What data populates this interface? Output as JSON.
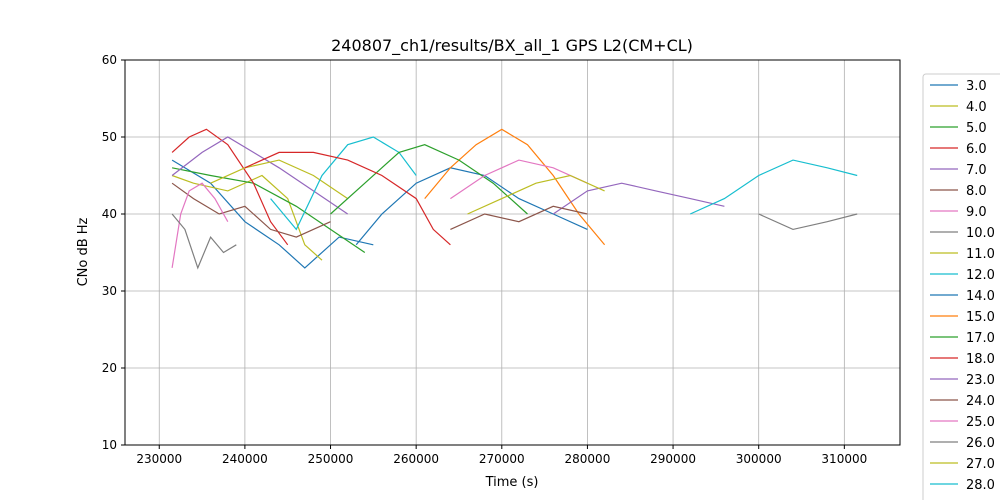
{
  "chart_data": {
    "type": "line",
    "title": "240807_ch1/results/BX_all_1 GPS L2(CM+CL)",
    "xlabel": "Time (s)",
    "ylabel": "CNo dB Hz",
    "xlim": [
      226000,
      316500
    ],
    "ylim": [
      10,
      60
    ],
    "x_ticks": [
      230000,
      240000,
      250000,
      260000,
      270000,
      280000,
      290000,
      300000,
      310000
    ],
    "y_ticks": [
      10,
      20,
      30,
      40,
      50,
      60
    ],
    "x_tick_labels": [
      "230000",
      "240000",
      "250000",
      "260000",
      "270000",
      "280000",
      "290000",
      "300000",
      "310000"
    ],
    "y_tick_labels": [
      "10",
      "20",
      "30",
      "40",
      "50",
      "60"
    ],
    "grid": true,
    "legend_position": "right, outside plot area",
    "series": [
      {
        "name": "3.0",
        "color": "#1f77b4",
        "values": [
          [
            231500,
            47
          ],
          [
            236000,
            44
          ],
          [
            240000,
            39
          ],
          [
            244000,
            36
          ],
          [
            247000,
            33
          ],
          [
            251000,
            37
          ],
          [
            255000,
            36
          ]
        ]
      },
      {
        "name": "4.0",
        "color": "#bcbd22",
        "values": [
          [
            231500,
            45
          ],
          [
            234000,
            44
          ],
          [
            238000,
            43
          ],
          [
            242000,
            45
          ],
          [
            245000,
            42
          ],
          [
            247000,
            36
          ],
          [
            249000,
            34
          ]
        ]
      },
      {
        "name": "5.0",
        "color": "#2ca02c",
        "values": [
          [
            231500,
            46
          ],
          [
            236000,
            45
          ],
          [
            241000,
            44
          ],
          [
            246000,
            41
          ],
          [
            250000,
            38
          ],
          [
            254000,
            35
          ]
        ]
      },
      {
        "name": "6.0",
        "color": "#d62728",
        "values": [
          [
            231500,
            48
          ],
          [
            233500,
            50
          ],
          [
            235500,
            51
          ],
          [
            238000,
            49
          ],
          [
            241000,
            44
          ],
          [
            243000,
            39
          ],
          [
            245000,
            36
          ]
        ]
      },
      {
        "name": "7.0",
        "color": "#9467bd",
        "values": [
          [
            231500,
            45
          ],
          [
            235000,
            48
          ],
          [
            238000,
            50
          ],
          [
            241000,
            48
          ],
          [
            244000,
            46
          ],
          [
            248000,
            43
          ],
          [
            252000,
            40
          ]
        ]
      },
      {
        "name": "8.0",
        "color": "#8c564b",
        "values": [
          [
            231500,
            44
          ],
          [
            234000,
            42
          ],
          [
            237000,
            40
          ],
          [
            240000,
            41
          ],
          [
            243000,
            38
          ],
          [
            246000,
            37
          ],
          [
            250000,
            39
          ]
        ]
      },
      {
        "name": "9.0",
        "color": "#e377c2",
        "values": [
          [
            231500,
            33
          ],
          [
            232500,
            40
          ],
          [
            233500,
            43
          ],
          [
            235000,
            44
          ],
          [
            236500,
            42
          ],
          [
            238000,
            39
          ]
        ]
      },
      {
        "name": "10.0",
        "color": "#7f7f7f",
        "values": [
          [
            231500,
            40
          ],
          [
            233000,
            38
          ],
          [
            234500,
            33
          ],
          [
            236000,
            37
          ],
          [
            237500,
            35
          ],
          [
            239000,
            36
          ]
        ]
      },
      {
        "name": "11.0",
        "color": "#bcbd22",
        "values": [
          [
            236000,
            44
          ],
          [
            240000,
            46
          ],
          [
            244000,
            47
          ],
          [
            248000,
            45
          ],
          [
            252000,
            42
          ]
        ]
      },
      {
        "name": "12.0",
        "color": "#17becf",
        "values": [
          [
            243000,
            42
          ],
          [
            246000,
            38
          ],
          [
            249000,
            45
          ],
          [
            252000,
            49
          ],
          [
            255000,
            50
          ],
          [
            258000,
            48
          ],
          [
            260000,
            45
          ]
        ]
      },
      {
        "name": "14.0",
        "color": "#1f77b4",
        "values": [
          [
            253000,
            36
          ],
          [
            256000,
            40
          ],
          [
            260000,
            44
          ],
          [
            264000,
            46
          ],
          [
            268000,
            45
          ],
          [
            272000,
            42
          ],
          [
            276000,
            40
          ],
          [
            280000,
            38
          ]
        ]
      },
      {
        "name": "15.0",
        "color": "#ff7f0e",
        "values": [
          [
            261000,
            42
          ],
          [
            264000,
            46
          ],
          [
            267000,
            49
          ],
          [
            270000,
            51
          ],
          [
            273000,
            49
          ],
          [
            276000,
            45
          ],
          [
            279000,
            40
          ],
          [
            282000,
            36
          ]
        ]
      },
      {
        "name": "17.0",
        "color": "#2ca02c",
        "values": [
          [
            250000,
            40
          ],
          [
            254000,
            44
          ],
          [
            258000,
            48
          ],
          [
            261000,
            49
          ],
          [
            265000,
            47
          ],
          [
            269000,
            44
          ],
          [
            273000,
            40
          ]
        ]
      },
      {
        "name": "18.0",
        "color": "#d62728",
        "values": [
          [
            240000,
            46
          ],
          [
            244000,
            48
          ],
          [
            248000,
            48
          ],
          [
            252000,
            47
          ],
          [
            256000,
            45
          ],
          [
            260000,
            42
          ],
          [
            262000,
            38
          ],
          [
            264000,
            36
          ]
        ]
      },
      {
        "name": "23.0",
        "color": "#9467bd",
        "values": [
          [
            276000,
            40
          ],
          [
            280000,
            43
          ],
          [
            284000,
            44
          ],
          [
            288000,
            43
          ],
          [
            292000,
            42
          ],
          [
            296000,
            41
          ]
        ]
      },
      {
        "name": "24.0",
        "color": "#8c564b",
        "values": [
          [
            264000,
            38
          ],
          [
            268000,
            40
          ],
          [
            272000,
            39
          ],
          [
            276000,
            41
          ],
          [
            280000,
            40
          ]
        ]
      },
      {
        "name": "25.0",
        "color": "#e377c2",
        "values": [
          [
            264000,
            42
          ],
          [
            268000,
            45
          ],
          [
            272000,
            47
          ],
          [
            276000,
            46
          ],
          [
            280000,
            44
          ]
        ]
      },
      {
        "name": "26.0",
        "color": "#7f7f7f",
        "values": [
          [
            300000,
            40
          ],
          [
            304000,
            38
          ],
          [
            308000,
            39
          ],
          [
            311500,
            40
          ]
        ]
      },
      {
        "name": "27.0",
        "color": "#bcbd22",
        "values": [
          [
            266000,
            40
          ],
          [
            270000,
            42
          ],
          [
            274000,
            44
          ],
          [
            278000,
            45
          ],
          [
            282000,
            43
          ]
        ]
      },
      {
        "name": "28.0",
        "color": "#17becf",
        "values": [
          [
            292000,
            40
          ],
          [
            296000,
            42
          ],
          [
            300000,
            45
          ],
          [
            304000,
            47
          ],
          [
            308000,
            46
          ],
          [
            311500,
            45
          ]
        ]
      }
    ]
  }
}
